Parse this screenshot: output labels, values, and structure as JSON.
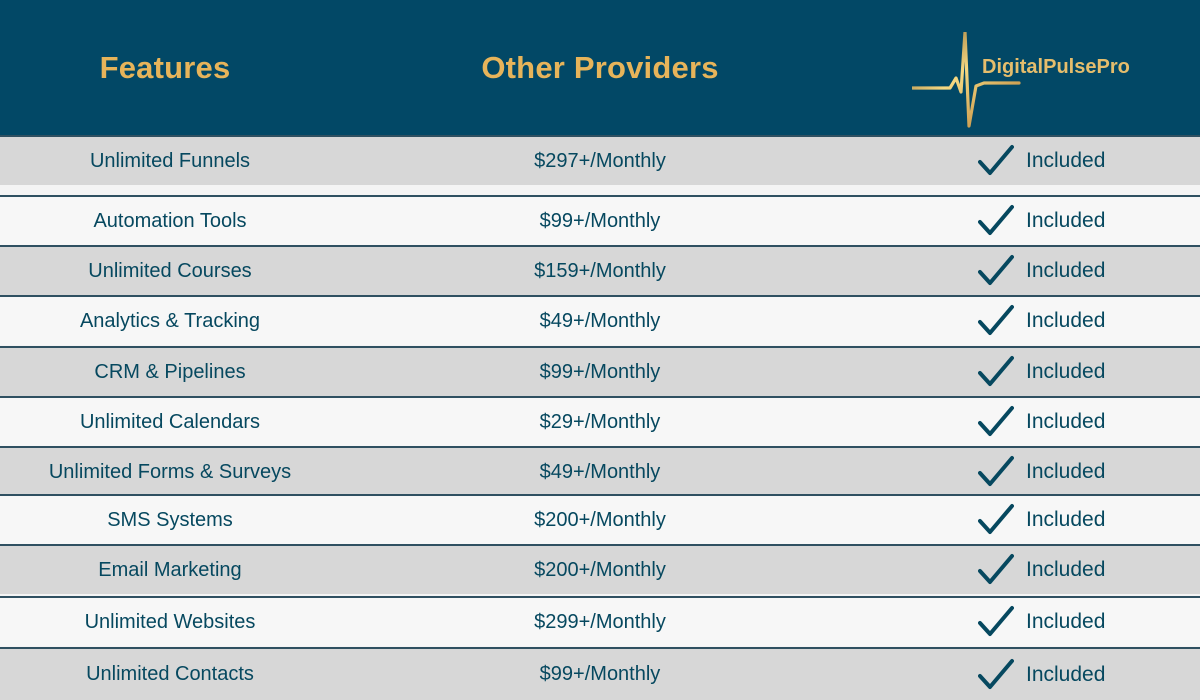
{
  "header": {
    "features": "Features",
    "other_providers": "Other Providers",
    "brand": "DigitalPulsePro"
  },
  "rows": [
    {
      "feature": "Unlimited Funnels",
      "price": "$297+/Monthly",
      "status": "Included",
      "icon": "check-icon"
    },
    {
      "feature": "Automation Tools",
      "price": "$99+/Monthly",
      "status": "Included",
      "icon": "check-icon"
    },
    {
      "feature": "Unlimited Courses",
      "price": "$159+/Monthly",
      "status": "Included",
      "icon": "check-icon"
    },
    {
      "feature": "Analytics & Tracking",
      "price": "$49+/Monthly",
      "status": "Included",
      "icon": "check-icon"
    },
    {
      "feature": "CRM & Pipelines",
      "price": "$99+/Monthly",
      "status": "Included",
      "icon": "check-icon"
    },
    {
      "feature": "Unlimited Calendars",
      "price": "$29+/Monthly",
      "status": "Included",
      "icon": "check-icon"
    },
    {
      "feature": "Unlimited Forms & Surveys",
      "price": "$49+/Monthly",
      "status": "Included",
      "icon": "check-icon"
    },
    {
      "feature": "SMS Systems",
      "price": "$200+/Monthly",
      "status": "Included",
      "icon": "check-icon"
    },
    {
      "feature": "Email Marketing",
      "price": "$200+/Monthly",
      "status": "Included",
      "icon": "check-icon"
    },
    {
      "feature": "Unlimited Websites",
      "price": "$299+/Monthly",
      "status": "Included",
      "icon": "check-icon"
    },
    {
      "feature": "Unlimited Contacts",
      "price": "$99+/Monthly",
      "status": "Included",
      "icon": "check-icon"
    }
  ],
  "colors": {
    "header_bg": "#024866",
    "accent": "#e7b45a",
    "text": "#06485f",
    "row_dark": "#d7d7d7",
    "row_light": "#f7f7f7"
  }
}
